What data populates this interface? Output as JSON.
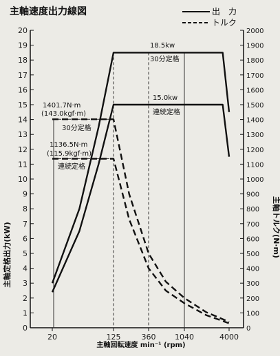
{
  "chart_data": {
    "type": "line",
    "title": "主軸速度出力線図",
    "xlabel": "主軸回転速度 min⁻¹ (rpm)",
    "ylabel_left": "主軸定格出力(kW)",
    "ylabel_right": "主軸トルク(N·m)",
    "x_ticks": [
      "20",
      "125",
      "360",
      "1040",
      "4000"
    ],
    "x_tick_values": [
      20,
      125,
      360,
      1040,
      4000
    ],
    "y_left_ticks": [
      "0",
      "1",
      "2",
      "3",
      "4",
      "5",
      "6",
      "7",
      "8",
      "9",
      "10",
      "11",
      "12",
      "13",
      "14",
      "15",
      "16",
      "17",
      "18",
      "19",
      "20"
    ],
    "y_right_ticks": [
      "0",
      "100",
      "200",
      "300",
      "400",
      "500",
      "600",
      "700",
      "800",
      "900",
      "1000",
      "1100",
      "1200",
      "1300",
      "1400",
      "1500",
      "1600",
      "1700",
      "1800",
      "1900",
      "2000"
    ],
    "ylim_left": [
      0,
      20
    ],
    "ylim_right": [
      0,
      2000
    ],
    "legend": {
      "solid_label": "出　力",
      "dashed_label": "トルク",
      "placement": "top-right"
    },
    "annotations": {
      "p30_label": "18.5kw",
      "p30_note": "30分定格",
      "pcont_label": "15.0kw",
      "pcont_note": "連続定格",
      "t30_nm": "1401.7N·m",
      "t30_kgf": "(143.0kgf·m)",
      "t30_note": "30分定格",
      "tcont_nm": "1136.5N·m",
      "tcont_kgf": "(115.9kgf·m)",
      "tcont_note": "連続定格"
    },
    "series": [
      {
        "name": "出　力 30分定格",
        "style": "solid",
        "axis": "left",
        "x": [
          20,
          45,
          80,
          125,
          1040,
          3300,
          4000
        ],
        "y": [
          3.0,
          8.0,
          13.5,
          18.5,
          18.5,
          18.5,
          14.5
        ]
      },
      {
        "name": "出　力 連続定格",
        "style": "solid",
        "axis": "left",
        "x": [
          20,
          45,
          80,
          125,
          1040,
          3300,
          4000
        ],
        "y": [
          2.4,
          6.5,
          11.0,
          15.0,
          15.0,
          15.0,
          11.5
        ]
      },
      {
        "name": "トルク 30分定格",
        "style": "dashed",
        "axis": "right",
        "x": [
          20,
          125,
          200,
          360,
          600,
          1040,
          2000,
          4000
        ],
        "y": [
          1401.7,
          1401.7,
          900,
          500,
          310,
          200,
          105,
          40
        ]
      },
      {
        "name": "トルク 連続定格",
        "style": "dashed",
        "axis": "right",
        "x": [
          20,
          125,
          200,
          360,
          600,
          1040,
          2000,
          4000
        ],
        "y": [
          1136.5,
          1136.5,
          730,
          400,
          250,
          165,
          85,
          30
        ]
      }
    ]
  }
}
